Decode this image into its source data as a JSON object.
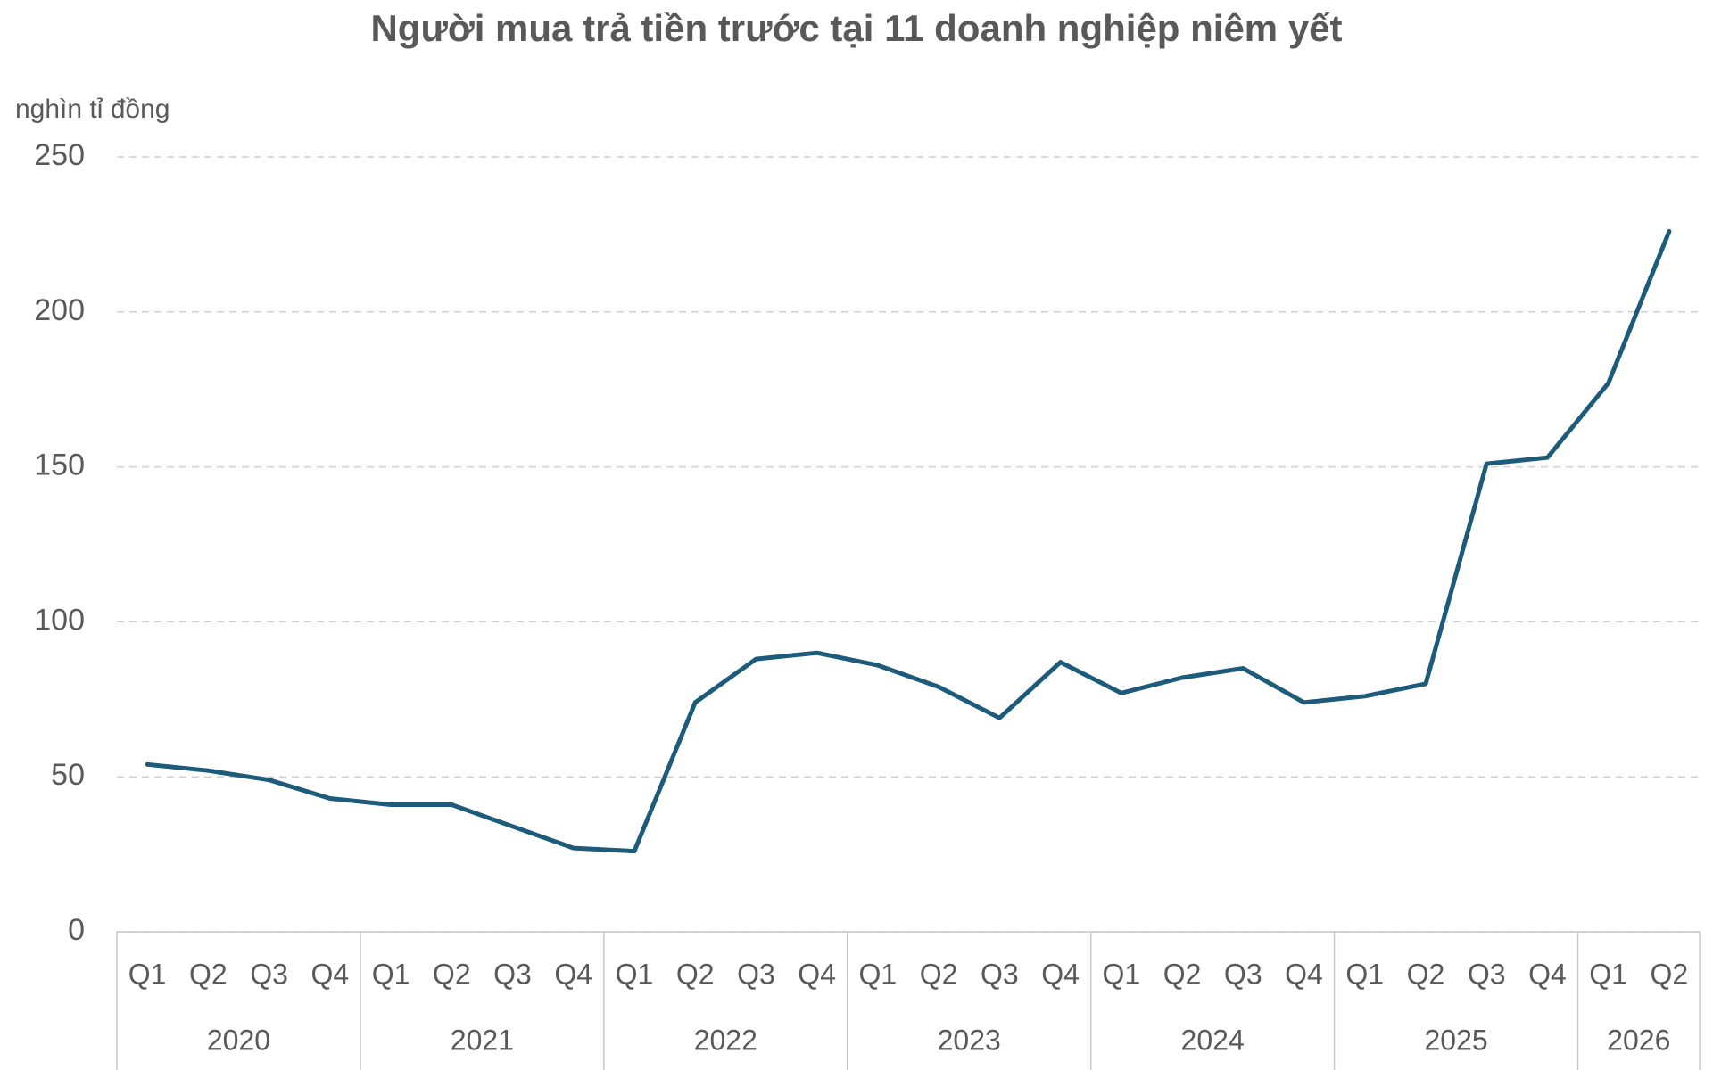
{
  "chart_data": {
    "type": "line",
    "title": "Người mua trả tiền trước tại 11 doanh nghiệp niêm yết",
    "y_label": "nghìn tỉ đồng",
    "groups": [
      {
        "name": "2020",
        "categories": [
          "Q1",
          "Q2",
          "Q3",
          "Q4"
        ]
      },
      {
        "name": "2021",
        "categories": [
          "Q1",
          "Q2",
          "Q3",
          "Q4"
        ]
      },
      {
        "name": "2022",
        "categories": [
          "Q1",
          "Q2",
          "Q3",
          "Q4"
        ]
      },
      {
        "name": "2023",
        "categories": [
          "Q1",
          "Q2",
          "Q3",
          "Q4"
        ]
      },
      {
        "name": "2024",
        "categories": [
          "Q1",
          "Q2",
          "Q3",
          "Q4"
        ]
      },
      {
        "name": "2025",
        "categories": [
          "Q1",
          "Q2",
          "Q3",
          "Q4"
        ]
      },
      {
        "name": "2026",
        "categories": [
          "Q1",
          "Q2"
        ]
      }
    ],
    "values": [
      54,
      52,
      49,
      43,
      41,
      41,
      34,
      27,
      26,
      74,
      88,
      90,
      86,
      79,
      69,
      87,
      77,
      82,
      85,
      74,
      76,
      80,
      151,
      153,
      177,
      226
    ],
    "color": "#1d5b7a",
    "ylim": [
      0,
      250
    ],
    "yticks": [
      0,
      50,
      100,
      150,
      200,
      250
    ],
    "grid": true
  }
}
